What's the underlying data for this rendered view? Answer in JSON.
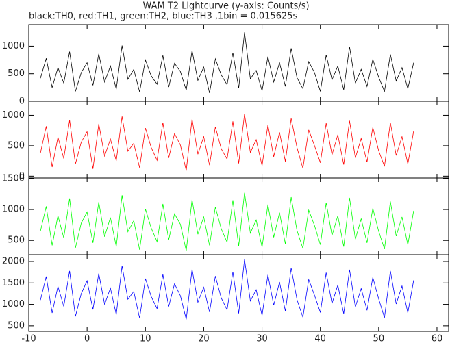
{
  "chart_data": [
    {
      "type": "line",
      "title": "WAM T2 Lightcurve (y-axis: Counts/s)",
      "subtitle": "black:TH0, red:TH1, green:TH2, blue:TH3 ,1bin = 0.015625s",
      "x": [
        -8,
        -7,
        -6,
        -5,
        -4,
        -3,
        -2,
        -1,
        0,
        1,
        2,
        3,
        4,
        5,
        6,
        7,
        8,
        9,
        10,
        11,
        12,
        13,
        14,
        15,
        16,
        17,
        18,
        19,
        20,
        21,
        22,
        23,
        24,
        25,
        26,
        27,
        28,
        29,
        30,
        31,
        32,
        33,
        34,
        35,
        36,
        37,
        38,
        39,
        40,
        41,
        42,
        43,
        44,
        45,
        46,
        47,
        48,
        49,
        50,
        51,
        52,
        53,
        54,
        55,
        56
      ],
      "series": [
        {
          "color": "#000000",
          "values": [
            420,
            780,
            250,
            610,
            330,
            900,
            180,
            520,
            700,
            290,
            860,
            350,
            640,
            220,
            1010,
            400,
            580,
            170,
            750,
            460,
            310,
            830,
            260,
            690,
            540,
            200,
            920,
            380,
            620,
            150,
            770,
            480,
            300,
            880,
            240,
            1250,
            410,
            560,
            190,
            810,
            350,
            700,
            270,
            960,
            430,
            230,
            720,
            520,
            180,
            840,
            390,
            640,
            210,
            990,
            330,
            580,
            270,
            760,
            440,
            180,
            850,
            370,
            610,
            230,
            700
          ]
        }
      ],
      "xlim": [
        -10,
        62
      ],
      "xticks": [
        -10,
        0,
        10,
        20,
        30,
        40,
        50,
        60
      ],
      "ylim": [
        0,
        1390
      ],
      "yticks": [
        0,
        500,
        1000
      ]
    },
    {
      "type": "line",
      "x": [
        -8,
        -7,
        -6,
        -5,
        -4,
        -3,
        -2,
        -1,
        0,
        1,
        2,
        3,
        4,
        5,
        6,
        7,
        8,
        9,
        10,
        11,
        12,
        13,
        14,
        15,
        16,
        17,
        18,
        19,
        20,
        21,
        22,
        23,
        24,
        25,
        26,
        27,
        28,
        29,
        30,
        31,
        32,
        33,
        34,
        35,
        36,
        37,
        38,
        39,
        40,
        41,
        42,
        43,
        44,
        45,
        46,
        47,
        48,
        49,
        50,
        51,
        52,
        53,
        54,
        55,
        56
      ],
      "series": [
        {
          "color": "#ff0000",
          "values": [
            380,
            820,
            150,
            640,
            290,
            920,
            200,
            560,
            730,
            120,
            860,
            330,
            610,
            250,
            980,
            410,
            540,
            140,
            790,
            470,
            260,
            880,
            300,
            700,
            510,
            90,
            940,
            360,
            650,
            180,
            810,
            450,
            280,
            900,
            210,
            1020,
            390,
            600,
            170,
            840,
            320,
            720,
            240,
            950,
            470,
            130,
            760,
            500,
            220,
            870,
            350,
            680,
            190,
            910,
            300,
            620,
            230,
            800,
            420,
            160,
            880,
            340,
            650,
            200,
            740
          ]
        }
      ],
      "xlim": [
        -10,
        62
      ],
      "xticks": [
        -10,
        0,
        10,
        20,
        30,
        40,
        50,
        60
      ],
      "ylim": [
        -30,
        1230
      ],
      "yticks": [
        0,
        500,
        1000
      ]
    },
    {
      "type": "line",
      "x": [
        -8,
        -7,
        -6,
        -5,
        -4,
        -3,
        -2,
        -1,
        0,
        1,
        2,
        3,
        4,
        5,
        6,
        7,
        8,
        9,
        10,
        11,
        12,
        13,
        14,
        15,
        16,
        17,
        18,
        19,
        20,
        21,
        22,
        23,
        24,
        25,
        26,
        27,
        28,
        29,
        30,
        31,
        32,
        33,
        34,
        35,
        36,
        37,
        38,
        39,
        40,
        41,
        42,
        43,
        44,
        45,
        46,
        47,
        48,
        49,
        50,
        51,
        52,
        53,
        54,
        55,
        56
      ],
      "series": [
        {
          "color": "#00ff00",
          "values": [
            650,
            1050,
            420,
            900,
            540,
            1180,
            380,
            780,
            960,
            460,
            1120,
            560,
            870,
            400,
            1230,
            640,
            820,
            350,
            1010,
            700,
            480,
            1090,
            510,
            930,
            760,
            330,
            1160,
            600,
            880,
            420,
            1040,
            690,
            470,
            1150,
            410,
            1270,
            620,
            830,
            390,
            1080,
            550,
            950,
            440,
            1200,
            660,
            370,
            990,
            740,
            430,
            1110,
            580,
            900,
            400,
            1190,
            520,
            850,
            460,
            1020,
            650,
            360,
            1130,
            570,
            880,
            430,
            980
          ]
        }
      ],
      "xlim": [
        -10,
        62
      ],
      "xticks": [
        -10,
        0,
        10,
        20,
        30,
        40,
        50,
        60
      ],
      "ylim": [
        270,
        1510
      ],
      "yticks": [
        500,
        1000,
        1500
      ]
    },
    {
      "type": "line",
      "x": [
        -8,
        -7,
        -6,
        -5,
        -4,
        -3,
        -2,
        -1,
        0,
        1,
        2,
        3,
        4,
        5,
        6,
        7,
        8,
        9,
        10,
        11,
        12,
        13,
        14,
        15,
        16,
        17,
        18,
        19,
        20,
        21,
        22,
        23,
        24,
        25,
        26,
        27,
        28,
        29,
        30,
        31,
        32,
        33,
        34,
        35,
        36,
        37,
        38,
        39,
        40,
        41,
        42,
        43,
        44,
        45,
        46,
        47,
        48,
        49,
        50,
        51,
        52,
        53,
        54,
        55,
        56
      ],
      "series": [
        {
          "color": "#0000ff",
          "values": [
            1100,
            1650,
            800,
            1420,
            950,
            1780,
            720,
            1250,
            1550,
            880,
            1720,
            1000,
            1380,
            760,
            1900,
            1120,
            1300,
            680,
            1600,
            1180,
            900,
            1700,
            950,
            1480,
            1200,
            650,
            1820,
            1050,
            1400,
            820,
            1660,
            1150,
            870,
            1760,
            790,
            2050,
            1080,
            1340,
            740,
            1690,
            980,
            1520,
            840,
            1850,
            1110,
            700,
            1580,
            1210,
            810,
            1740,
            1020,
            1450,
            780,
            1810,
            940,
            1370,
            860,
            1630,
            1130,
            690,
            1780,
            1010,
            1430,
            800,
            1560
          ]
        }
      ],
      "xlim": [
        -10,
        62
      ],
      "xticks": [
        -10,
        0,
        10,
        20,
        30,
        40,
        50,
        60
      ],
      "ylim": [
        370,
        2160
      ],
      "yticks": [
        500,
        1000,
        1500,
        2000
      ]
    }
  ]
}
